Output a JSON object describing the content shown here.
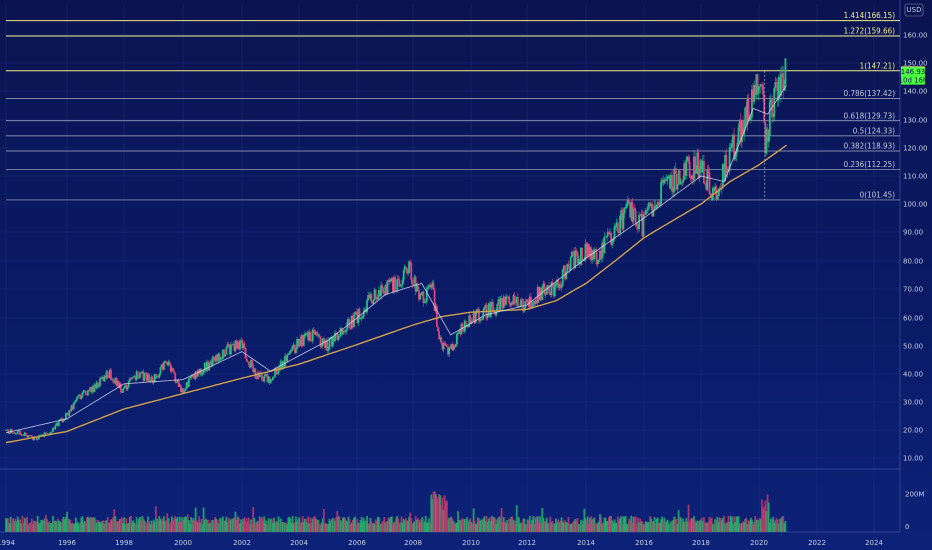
{
  "currency": "USD",
  "colors": {
    "up": "#26c281",
    "down": "#e0457a",
    "ma_short": "#d9d9ef",
    "ma_long": "#d2a14e",
    "fib_main": "#f2ee8a",
    "fib_line": "#aab0c8",
    "price_tag_last": "#f2ee8a",
    "price_tag_live": "#4cff3c",
    "volume_up": "#27b36b",
    "volume_down": "#c23a6d"
  },
  "chart_data": {
    "type": "candlestick",
    "yscale": "log",
    "ylim": [
      8.6,
      175
    ],
    "xlim": [
      1994.0,
      2025.5
    ],
    "x_ticks": [
      "1994",
      "1996",
      "1998",
      "2000",
      "2002",
      "2004",
      "2006",
      "2008",
      "2010",
      "2012",
      "2014",
      "2016",
      "2018",
      "2020",
      "2022",
      "2024"
    ],
    "y_ticks": [
      "10.00",
      "20.00",
      "30.00",
      "40.00",
      "50.00",
      "60.00",
      "70.00",
      "80.00",
      "90.00",
      "100.00",
      "110.00",
      "120.00",
      "130.00",
      "140.00",
      "150.00",
      "160.00"
    ],
    "price_path": [
      [
        1994.0,
        19.8
      ],
      [
        1994.5,
        19.0
      ],
      [
        1995.0,
        16.8
      ],
      [
        1995.5,
        19.5
      ],
      [
        1996.0,
        25.0
      ],
      [
        1996.5,
        32.0
      ],
      [
        1997.0,
        35.0
      ],
      [
        1997.5,
        40.5
      ],
      [
        1998.0,
        34.0
      ],
      [
        1998.5,
        40.0
      ],
      [
        1999.0,
        38.0
      ],
      [
        1999.5,
        44.0
      ],
      [
        2000.0,
        34.0
      ],
      [
        2000.5,
        40.0
      ],
      [
        2001.0,
        44.0
      ],
      [
        2001.5,
        48.5
      ],
      [
        2002.0,
        51.0
      ],
      [
        2002.5,
        40.0
      ],
      [
        2003.0,
        38.0
      ],
      [
        2003.5,
        44.0
      ],
      [
        2004.0,
        51.0
      ],
      [
        2004.5,
        54.0
      ],
      [
        2005.0,
        50.0
      ],
      [
        2005.5,
        56.0
      ],
      [
        2006.0,
        60.0
      ],
      [
        2006.5,
        66.0
      ],
      [
        2007.0,
        70.0
      ],
      [
        2007.5,
        72.0
      ],
      [
        2007.9,
        78.0
      ],
      [
        2008.3,
        66.0
      ],
      [
        2008.7,
        70.0
      ],
      [
        2009.0,
        50.0
      ],
      [
        2009.3,
        48.0
      ],
      [
        2009.7,
        56.0
      ],
      [
        2010.0,
        60.0
      ],
      [
        2010.5,
        62.0
      ],
      [
        2011.0,
        64.0
      ],
      [
        2011.5,
        67.0
      ],
      [
        2012.0,
        64.0
      ],
      [
        2012.5,
        69.0
      ],
      [
        2013.0,
        70.0
      ],
      [
        2013.5,
        80.0
      ],
      [
        2014.0,
        83.0
      ],
      [
        2014.5,
        82.0
      ],
      [
        2015.0,
        90.0
      ],
      [
        2015.5,
        98.0
      ],
      [
        2016.0,
        92.0
      ],
      [
        2016.5,
        103.0
      ],
      [
        2017.0,
        108.0
      ],
      [
        2017.5,
        112.0
      ],
      [
        2018.0,
        114.0
      ],
      [
        2018.3,
        108.0
      ],
      [
        2018.5,
        102.0
      ],
      [
        2018.8,
        112.0
      ],
      [
        2019.0,
        116.0
      ],
      [
        2019.3,
        124.0
      ],
      [
        2019.6,
        132.0
      ],
      [
        2019.9,
        141.0
      ],
      [
        2020.1,
        146.0
      ],
      [
        2020.25,
        122.0
      ],
      [
        2020.5,
        136.0
      ],
      [
        2020.75,
        140.0
      ],
      [
        2020.95,
        147.19
      ]
    ],
    "ma_short_path": [
      [
        1994.0,
        19.0
      ],
      [
        1996.0,
        24.0
      ],
      [
        1998.0,
        36.5
      ],
      [
        2000.0,
        38.0
      ],
      [
        2002.0,
        48.0
      ],
      [
        2003.0,
        41.0
      ],
      [
        2005.0,
        52.0
      ],
      [
        2007.0,
        68.0
      ],
      [
        2008.3,
        72.0
      ],
      [
        2009.3,
        54.0
      ],
      [
        2010.5,
        61.0
      ],
      [
        2012.0,
        64.5
      ],
      [
        2014.0,
        81.0
      ],
      [
        2016.0,
        95.0
      ],
      [
        2018.0,
        110.0
      ],
      [
        2018.8,
        108.0
      ],
      [
        2019.8,
        134.0
      ],
      [
        2020.3,
        132.0
      ],
      [
        2020.95,
        142.0
      ]
    ],
    "ma_long_path": [
      [
        1994.0,
        15.5
      ],
      [
        1996.0,
        19.5
      ],
      [
        1998.0,
        27.5
      ],
      [
        2000.0,
        33.0
      ],
      [
        2002.0,
        38.5
      ],
      [
        2004.0,
        43.5
      ],
      [
        2006.0,
        50.5
      ],
      [
        2008.0,
        57.5
      ],
      [
        2009.0,
        60.5
      ],
      [
        2010.0,
        62.0
      ],
      [
        2012.0,
        63.0
      ],
      [
        2013.0,
        66.0
      ],
      [
        2014.0,
        72.0
      ],
      [
        2016.0,
        88.0
      ],
      [
        2018.0,
        100.0
      ],
      [
        2019.0,
        108.0
      ],
      [
        2020.0,
        114.0
      ],
      [
        2020.95,
        121.0
      ]
    ],
    "fib_levels": [
      {
        "ratio": 1.414,
        "value": 166.15,
        "label": "1.414(166.15)"
      },
      {
        "ratio": 1.272,
        "value": 159.66,
        "label": "1.272(159.66)"
      },
      {
        "ratio": 1,
        "value": 147.21,
        "label": "1(147.21)"
      },
      {
        "ratio": 0.786,
        "value": 137.42,
        "label": "0.786(137.42)"
      },
      {
        "ratio": 0.618,
        "value": 129.73,
        "label": "0.618(129.73)"
      },
      {
        "ratio": 0.5,
        "value": 124.33,
        "label": "0.5(124.33)"
      },
      {
        "ratio": 0.382,
        "value": 118.93,
        "label": "0.382(118.93)"
      },
      {
        "ratio": 0.236,
        "value": 112.25,
        "label": "0.236(112.25)"
      },
      {
        "ratio": 0,
        "value": 101.45,
        "label": "0(101.45)"
      }
    ],
    "price_tags": [
      {
        "value": 147.19,
        "label": "147.19",
        "kind": "last"
      },
      {
        "value": 146.93,
        "label": "146.93",
        "kind": "live"
      },
      {
        "value": 143.9,
        "label": "10d 16h",
        "kind": "countdown"
      }
    ],
    "volume": {
      "ticks": [
        "200M",
        "0"
      ],
      "tick_values": [
        200,
        0
      ],
      "ylim": [
        0,
        300
      ],
      "unit": "M"
    }
  }
}
